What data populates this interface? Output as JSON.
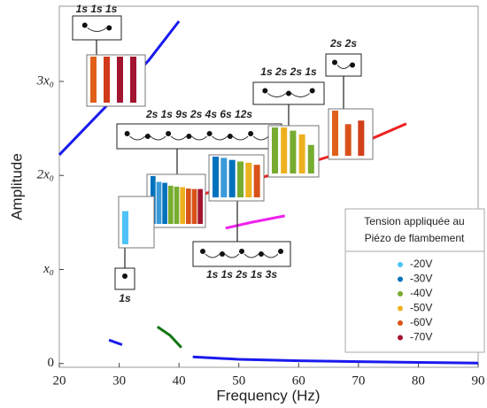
{
  "chart_data": {
    "type": "line",
    "xlabel": "Frequency (Hz)",
    "ylabel": "Amplitude",
    "xlim": [
      20,
      90
    ],
    "ylim": [
      -0.04,
      3.8
    ],
    "xticks": [
      20,
      30,
      40,
      50,
      60,
      70,
      80,
      90
    ],
    "yticks": [
      0,
      {
        "value": 1,
        "label": "x₀"
      },
      {
        "value": 2,
        "label": "2x₀"
      },
      {
        "value": 3,
        "label": "3x₀"
      }
    ],
    "series": [
      {
        "color": "#1a1aee",
        "x": [
          20,
          25,
          30,
          35,
          40
        ],
        "values": [
          2.22,
          2.55,
          2.88,
          3.23,
          3.64
        ]
      },
      {
        "color": "#ee2222",
        "x": [
          40,
          45,
          55,
          65,
          70,
          78
        ],
        "values": [
          1.72,
          1.82,
          2.0,
          2.2,
          2.33,
          2.55
        ]
      },
      {
        "color": "#ee22ee",
        "x": [
          47.8,
          52,
          57.7
        ],
        "values": [
          1.44,
          1.5,
          1.57
        ]
      },
      {
        "color": "#1a1aee",
        "x": [
          28.3,
          30.5
        ],
        "values": [
          0.25,
          0.2
        ]
      },
      {
        "color": "#117711",
        "x": [
          36.4,
          38.5,
          40.4
        ],
        "values": [
          0.39,
          0.3,
          0.17
        ]
      },
      {
        "color": "#1a1aee",
        "x": [
          42.3,
          50,
          60,
          70,
          80,
          90
        ],
        "values": [
          0.07,
          0.045,
          0.03,
          0.02,
          0.012,
          0.005
        ]
      }
    ],
    "insets": [
      {
        "label": "1s 1s 1s",
        "bars": [
          {
            "color": "#e0601a",
            "value": 1
          },
          {
            "color": "#d03a1a",
            "value": 1
          },
          {
            "color": "#a2142f",
            "value": 1
          },
          {
            "color": "#a2142f",
            "value": 1
          }
        ]
      },
      {
        "label": "2s 1s 9s 2s 4s 6s 12s",
        "bars": [
          {
            "color": "#0072bd",
            "value": 1
          },
          {
            "color": "#3a9ad9",
            "value": 0.88
          },
          {
            "color": "#0072bd",
            "value": 0.86
          },
          {
            "color": "#77ac30",
            "value": 0.8
          },
          {
            "color": "#77ac30",
            "value": 0.78
          },
          {
            "color": "#edb120",
            "value": 0.77
          },
          {
            "color": "#d95319",
            "value": 0.74
          },
          {
            "color": "#d95319",
            "value": 0.73
          },
          {
            "color": "#a2142f",
            "value": 0.73
          }
        ]
      },
      {
        "label": "1s",
        "bars": [
          {
            "color": "#4fc3f7",
            "value": 0.72
          }
        ]
      },
      {
        "label": "1s 1s 2s 1s 3s",
        "bars": [
          {
            "color": "#0072bd",
            "value": 1
          },
          {
            "color": "#3a9ad9",
            "value": 0.97
          },
          {
            "color": "#0072bd",
            "value": 0.92
          },
          {
            "color": "#77ac30",
            "value": 0.88
          },
          {
            "color": "#edb120",
            "value": 0.85
          },
          {
            "color": "#d95319",
            "value": 0.8
          }
        ]
      },
      {
        "label": "1s 2s 2s 1s",
        "bars": [
          {
            "color": "#77ac30",
            "value": 1
          },
          {
            "color": "#edb120",
            "value": 1
          },
          {
            "color": "#77ac30",
            "value": 0.93
          },
          {
            "color": "#edb120",
            "value": 0.85
          },
          {
            "color": "#77ac30",
            "value": 0.62
          }
        ]
      },
      {
        "label": "2s 2s",
        "bars": [
          {
            "color": "#e0601a",
            "value": 1
          },
          {
            "color": "#d95319",
            "value": 0.7
          },
          {
            "color": "#d0401a",
            "value": 0.78
          }
        ]
      }
    ],
    "legend": {
      "title": [
        "Tension appliquée au",
        "Piézo de flambement"
      ],
      "entries": [
        {
          "name": "-20V",
          "color": "#4fc3f7"
        },
        {
          "name": "-30V",
          "color": "#0072bd"
        },
        {
          "name": "-40V",
          "color": "#77ac30"
        },
        {
          "name": "-50V",
          "color": "#edb120"
        },
        {
          "name": "-60V",
          "color": "#d95319"
        },
        {
          "name": "-70V",
          "color": "#a2142f"
        }
      ]
    }
  }
}
